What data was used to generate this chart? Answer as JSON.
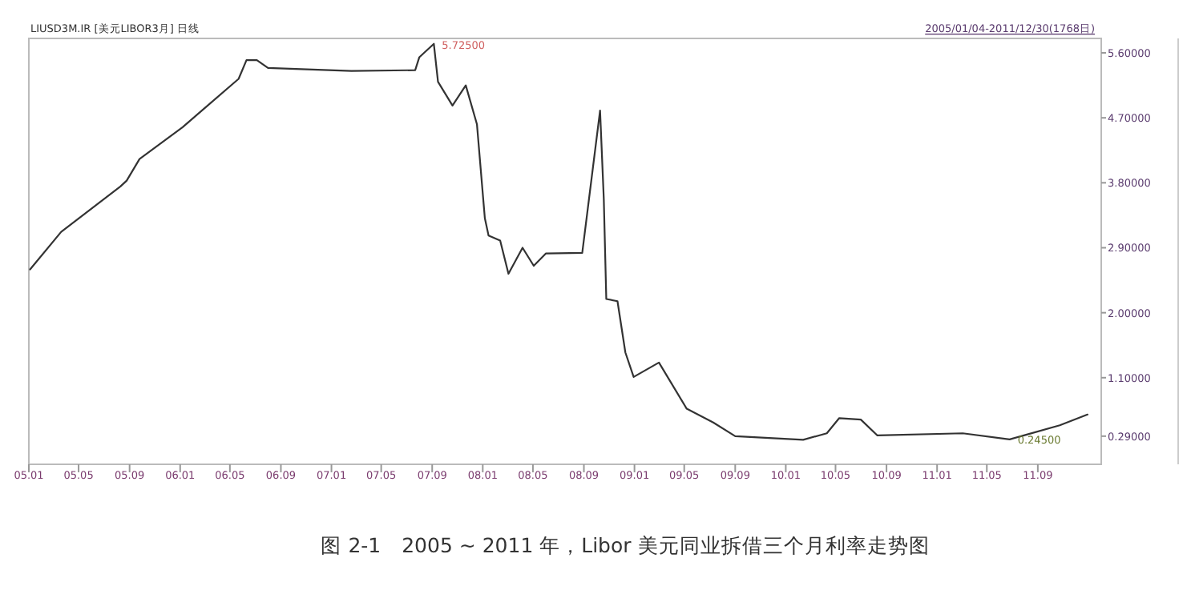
{
  "chart_data": {
    "type": "line",
    "title": "图 2-1　2005 ~ 2011 年，Libor 美元同业拆借三个月利率走势图",
    "x": [
      "2005-01-04",
      "2005-03-20",
      "2005-08-10",
      "2005-08-25",
      "2005-09-25",
      "2006-01-07",
      "2006-05-22",
      "2006-06-10",
      "2006-07-05",
      "2006-08-01",
      "2007-02-18",
      "2007-07-22",
      "2007-08-01",
      "2007-09-05",
      "2007-09-15",
      "2007-10-20",
      "2007-11-21",
      "2007-12-18",
      "2008-01-06",
      "2008-01-15",
      "2008-02-12",
      "2008-03-03",
      "2008-04-06",
      "2008-05-03",
      "2008-06-01",
      "2008-08-28",
      "2008-10-10",
      "2008-10-19",
      "2008-10-25",
      "2008-11-21",
      "2008-12-10",
      "2008-12-30",
      "2009-03-01",
      "2009-05-07",
      "2009-07-10",
      "2009-09-01",
      "2010-02-12",
      "2010-04-10",
      "2010-05-10",
      "2010-07-01",
      "2010-08-10",
      "2011-03-04",
      "2011-06-25",
      "2011-10-24",
      "2011-12-30"
    ],
    "values": [
      2.6,
      3.12,
      3.75,
      3.83,
      4.13,
      4.57,
      5.24,
      5.5,
      5.5,
      5.39,
      5.35,
      5.36,
      5.54,
      5.725,
      5.2,
      4.87,
      5.15,
      4.61,
      3.31,
      3.07,
      3.0,
      2.54,
      2.9,
      2.65,
      2.82,
      2.83,
      4.8,
      3.57,
      2.19,
      2.16,
      1.45,
      1.11,
      1.31,
      0.67,
      0.48,
      0.29,
      0.24,
      0.33,
      0.54,
      0.52,
      0.3,
      0.33,
      0.245,
      0.44,
      0.59
    ],
    "color": "#333333",
    "xlim": [
      "2005-01-01",
      "2012-02-01"
    ],
    "ylim": [
      -0.1,
      5.8
    ],
    "xticks": [
      {
        "value": "2005-01",
        "label": "05.01"
      },
      {
        "value": "2005-05",
        "label": "05.05"
      },
      {
        "value": "2005-09",
        "label": "05.09"
      },
      {
        "value": "2006-01",
        "label": "06.01"
      },
      {
        "value": "2006-05",
        "label": "06.05"
      },
      {
        "value": "2006-09",
        "label": "06.09"
      },
      {
        "value": "2007-01",
        "label": "07.01"
      },
      {
        "value": "2007-05",
        "label": "07.05"
      },
      {
        "value": "2007-09",
        "label": "07.09"
      },
      {
        "value": "2008-01",
        "label": "08.01"
      },
      {
        "value": "2008-05",
        "label": "08.05"
      },
      {
        "value": "2008-09",
        "label": "08.09"
      },
      {
        "value": "2009-01",
        "label": "09.01"
      },
      {
        "value": "2009-05",
        "label": "09.05"
      },
      {
        "value": "2009-09",
        "label": "09.09"
      },
      {
        "value": "2010-01",
        "label": "10.01"
      },
      {
        "value": "2010-05",
        "label": "10.05"
      },
      {
        "value": "2010-09",
        "label": "10.09"
      },
      {
        "value": "2011-01",
        "label": "11.01"
      },
      {
        "value": "2011-05",
        "label": "11.05"
      },
      {
        "value": "2011-09",
        "label": "11.09"
      }
    ],
    "yticks": [
      {
        "value": 5.6,
        "label": "5.60000"
      },
      {
        "value": 4.7,
        "label": "4.70000"
      },
      {
        "value": 3.8,
        "label": "3.80000"
      },
      {
        "value": 2.9,
        "label": "2.90000"
      },
      {
        "value": 2.0,
        "label": "2.00000"
      },
      {
        "value": 1.1,
        "label": "1.10000"
      },
      {
        "value": 0.29,
        "label": "0.29000"
      }
    ],
    "annotations": [
      "LIUSD3M.IR [美元LIBOR3月] 日线",
      "2005/01/04-2011/12/30(1768日)",
      {
        "text": "5.72500",
        "x": "2007-09-05",
        "y": 5.725
      },
      {
        "text": "0.24500",
        "x": "2011-06-25",
        "y": 0.245
      }
    ]
  }
}
